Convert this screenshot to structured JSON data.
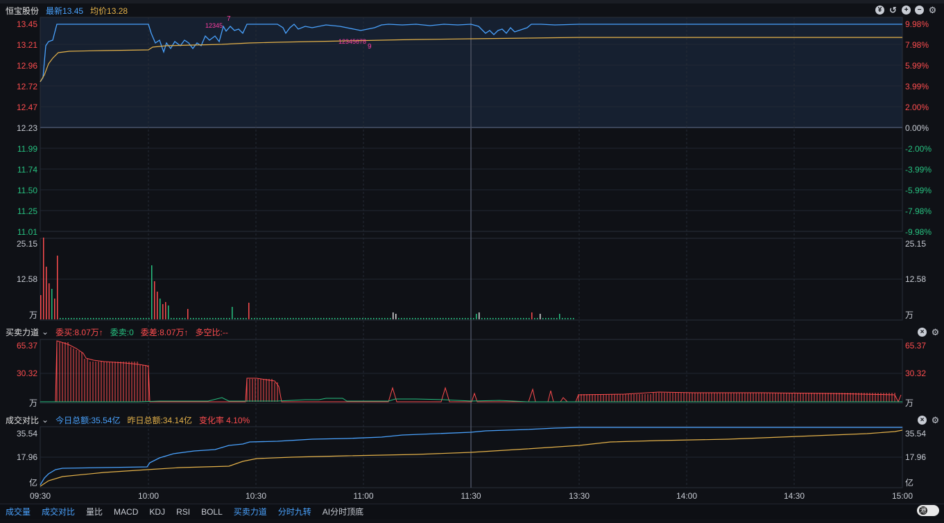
{
  "header": {
    "stock_name": "恒宝股份",
    "latest_label": "最新13.45",
    "avg_label": "均价13.28"
  },
  "price_axis": {
    "left": [
      "13.45",
      "13.21",
      "12.96",
      "12.72",
      "12.47",
      "12.23",
      "11.99",
      "11.74",
      "11.50",
      "11.25",
      "11.01"
    ],
    "right": [
      "9.98%",
      "7.98%",
      "5.99%",
      "3.99%",
      "2.00%",
      "0.00%",
      "-2.00%",
      "-3.99%",
      "-5.99%",
      "-7.98%",
      "-9.98%"
    ]
  },
  "volume_axis": {
    "top": "25.15",
    "mid": "12.58",
    "unit": "万"
  },
  "force_panel": {
    "title": "买卖力道",
    "wei_mai": "委买:8.07万",
    "wei_mai_arrow": "↑",
    "wei_mai_sell": "委卖:0",
    "wei_cha": "委差:8.07万",
    "wei_cha_arrow": "↑",
    "duo_kong": "多空比:--",
    "axis": [
      "65.37",
      "30.32",
      "万"
    ]
  },
  "turnover_panel": {
    "title": "成交对比",
    "today": "今日总额:35.54亿",
    "yesterday": "昨日总额:34.14亿",
    "change": "变化率 4.10%",
    "axis": [
      "35.54",
      "17.96",
      "亿"
    ]
  },
  "time_axis": [
    "09:30",
    "10:00",
    "10:30",
    "11:00",
    "11:30",
    "13:30",
    "14:00",
    "14:30",
    "15:00"
  ],
  "markers": {
    "seq1": "12345",
    "seq1b": "7",
    "seq2": "12345678",
    "seq2b": "9"
  },
  "tabs": [
    "成交量",
    "成交对比",
    "量比",
    "MACD",
    "KDJ",
    "RSI",
    "BOLL",
    "买卖力道",
    "分时九转",
    "AI分时顶底"
  ],
  "toggle_label": "港",
  "colors": {
    "up": "#ff4d4f",
    "down": "#27c281",
    "price_line": "#4aa3ff",
    "avg_line": "#e6b34a",
    "accent_blue": "#4aa3ff",
    "gray": "#c8ccd4"
  }
}
